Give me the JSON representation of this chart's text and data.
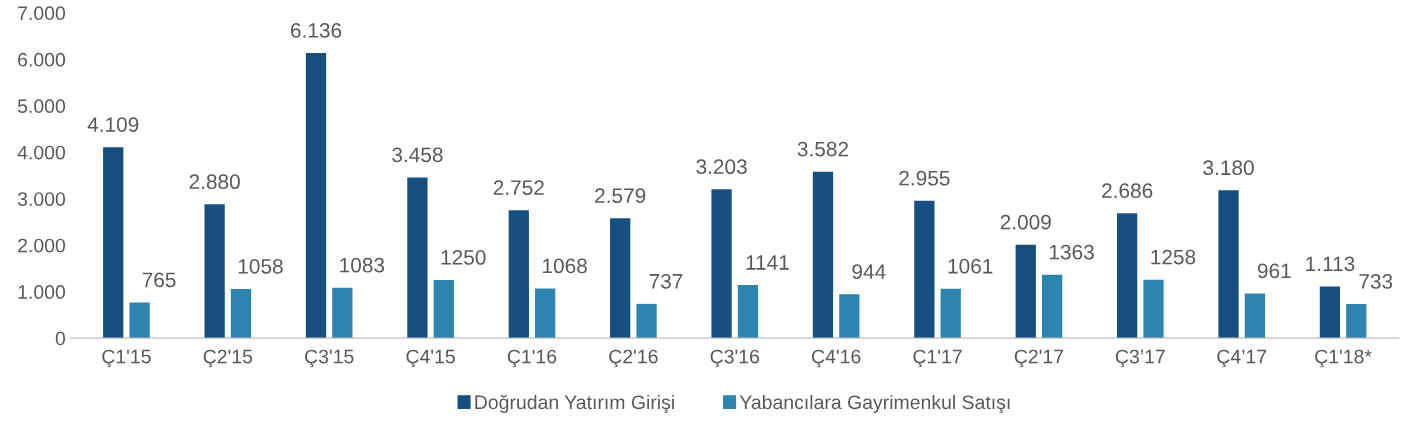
{
  "chart_data": {
    "type": "bar",
    "categories": [
      "Ç1'15",
      "Ç2'15",
      "Ç3'15",
      "Ç4'15",
      "Ç1'16",
      "Ç2'16",
      "Ç3'16",
      "Ç4'16",
      "Ç1'17",
      "Ç2'17",
      "Ç3’17",
      "Ç4’17",
      "Ç1'18*"
    ],
    "series": [
      {
        "name": "Doğrudan Yatırım Girişi",
        "color": "#174f80",
        "values": [
          4109,
          2880,
          6136,
          3458,
          2752,
          2579,
          3203,
          3582,
          2955,
          2009,
          2686,
          3180,
          1113
        ],
        "value_labels": [
          "4.109",
          "2.880",
          "6.136",
          "3.458",
          "2.752",
          "2.579",
          "3.203",
          "3.582",
          "2.955",
          "2.009",
          "2.686",
          "3.180",
          "1.113"
        ]
      },
      {
        "name": "Yabancılara Gayrimenkul Satışı",
        "color": "#2e84b0",
        "values": [
          765,
          1058,
          1083,
          1250,
          1068,
          737,
          1141,
          944,
          1061,
          1363,
          1258,
          961,
          733
        ],
        "value_labels": [
          "765",
          "1058",
          "1083",
          "1250",
          "1068",
          "737",
          "1141",
          "944",
          "1061",
          "1363",
          "1258",
          "961",
          "733"
        ]
      }
    ],
    "ylim": [
      0,
      7000
    ],
    "yticks": [
      0,
      {
        "value": 1000,
        "label": "1.000"
      },
      {
        "value": 2000,
        "label": "2.000"
      },
      {
        "value": 3000,
        "label": "3.000"
      },
      {
        "value": 4000,
        "label": "4.000"
      },
      {
        "value": 5000,
        "label": "5.000"
      },
      {
        "value": 6000,
        "label": "6.000"
      },
      {
        "value": 7000,
        "label": "7.000"
      }
    ],
    "grid": false,
    "legend": "bottom"
  }
}
